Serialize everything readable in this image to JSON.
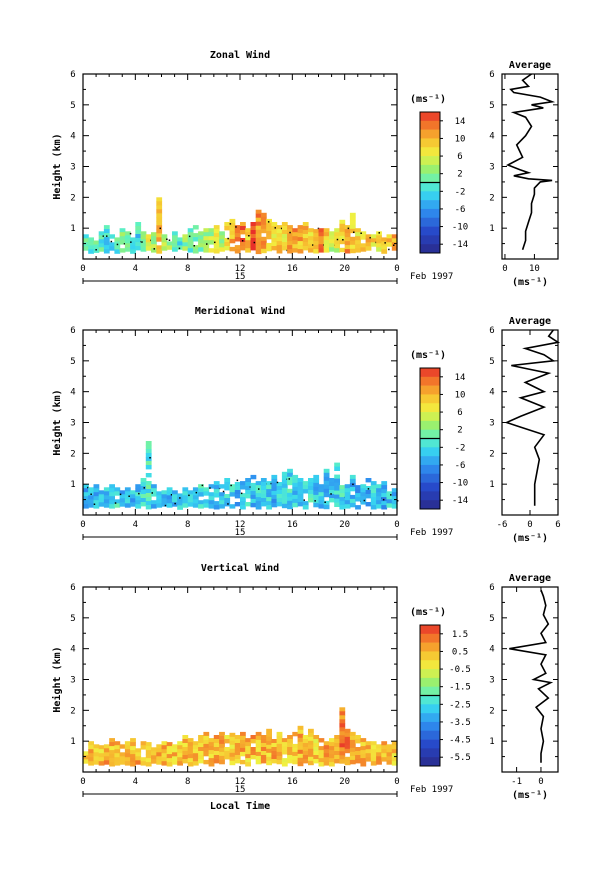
{
  "chart_data": [
    {
      "id": "zonal",
      "type": "heatmap",
      "title": "Zonal Wind",
      "xlabel": "",
      "ylabel": "Height (km)",
      "xlim": [
        0,
        24
      ],
      "ylim": [
        0,
        6
      ],
      "xticks": [
        "0",
        "4",
        "8",
        "12",
        "16",
        "20",
        "0"
      ],
      "yticks": [
        "1",
        "2",
        "3",
        "4",
        "5",
        "6"
      ],
      "day_label": "15",
      "date_label": "Feb 1997",
      "unit_label": "(ms⁻¹)",
      "colorbar": {
        "min": -16,
        "max": 16,
        "ticks": [
          "14",
          "10",
          "6",
          "2",
          "-2",
          "-6",
          "-10",
          "-14"
        ]
      },
      "top_height_km": [
        0.8,
        0.7,
        0.6,
        0.9,
        1.1,
        0.8,
        0.7,
        1.0,
        0.9,
        0.7,
        1.2,
        0.9,
        0.8,
        1.0,
        2.0,
        0.8,
        0.7,
        0.9,
        0.7,
        0.8,
        1.0,
        1.1,
        0.9,
        1.0,
        1.0,
        1.1,
        0.9,
        1.2,
        1.3,
        1.1,
        1.2,
        1.0,
        1.2,
        1.6,
        1.5,
        1.3,
        1.2,
        1.1,
        1.2,
        1.1,
        1.0,
        1.1,
        1.2,
        1.0,
        1.1,
        1.0,
        1.0,
        0.9,
        1.0,
        1.4,
        1.1,
        1.5,
        1.0,
        0.9,
        0.8,
        0.8,
        0.9,
        0.7,
        0.8,
        0.8
      ],
      "mean_value": [
        -1,
        -1,
        0,
        -1,
        -2,
        -1,
        0,
        1,
        0,
        -1,
        -2,
        2,
        6,
        4,
        10,
        3,
        2,
        0,
        -1,
        2,
        0,
        1,
        2,
        3,
        4,
        5,
        4,
        8,
        10,
        12,
        13,
        9,
        14,
        12,
        11,
        10,
        8,
        9,
        7,
        12,
        11,
        10,
        9,
        8,
        10,
        12,
        8,
        4,
        6,
        8,
        11,
        9,
        8,
        9,
        10,
        8,
        7,
        8,
        9,
        10
      ],
      "average_profile": {
        "title": "Average",
        "xlabel": "(ms⁻¹)",
        "xlim": [
          -1,
          18
        ],
        "xticks": [
          "0",
          "10"
        ],
        "height_km": [
          0.3,
          0.6,
          0.9,
          1.2,
          1.5,
          1.8,
          2.1,
          2.3,
          2.5,
          2.55,
          2.6,
          2.7,
          2.8,
          2.9,
          3.05,
          3.3,
          3.7,
          3.8,
          4.0,
          4.3,
          4.6,
          4.75,
          4.9,
          5.0,
          5.1,
          5.25,
          5.4,
          5.5,
          5.6,
          5.8,
          6.0
        ],
        "wind": [
          6,
          7,
          7,
          8,
          9,
          9,
          10,
          10,
          12,
          16,
          8,
          3,
          8,
          5,
          1,
          6,
          4,
          5,
          7,
          9,
          7,
          3,
          13,
          9,
          16,
          12,
          3,
          2,
          8,
          6,
          9
        ]
      }
    },
    {
      "id": "meridional",
      "type": "heatmap",
      "title": "Meridional Wind",
      "xlabel": "",
      "ylabel": "Height (km)",
      "xlim": [
        0,
        24
      ],
      "ylim": [
        0,
        6
      ],
      "xticks": [
        "0",
        "4",
        "8",
        "12",
        "16",
        "20",
        "0"
      ],
      "yticks": [
        "1",
        "2",
        "3",
        "4",
        "5",
        "6"
      ],
      "day_label": "15",
      "date_label": "Feb 1997",
      "unit_label": "(ms⁻¹)",
      "colorbar": {
        "min": -16,
        "max": 16,
        "ticks": [
          "14",
          "10",
          "6",
          "2",
          "-2",
          "-6",
          "-10",
          "-14"
        ]
      },
      "top_height_km": [
        1.0,
        0.9,
        1.0,
        0.8,
        0.9,
        1.0,
        0.9,
        0.8,
        0.9,
        0.8,
        1.0,
        1.2,
        2.4,
        1.0,
        0.9,
        0.8,
        0.9,
        0.8,
        0.7,
        0.9,
        0.8,
        0.9,
        1.0,
        0.9,
        1.0,
        1.1,
        1.0,
        1.2,
        1.0,
        1.2,
        1.1,
        1.2,
        1.3,
        1.1,
        1.2,
        1.1,
        1.3,
        1.2,
        1.4,
        1.5,
        1.3,
        1.2,
        1.1,
        1.2,
        1.3,
        1.0,
        1.5,
        1.2,
        1.7,
        1.1,
        1.0,
        1.3,
        1.1,
        1.0,
        1.2,
        1.1,
        1.0,
        1.1,
        0.9,
        1.0
      ],
      "mean_value": [
        -4,
        -3,
        -4,
        -5,
        -3,
        -4,
        -2,
        -4,
        -3,
        -4,
        -3,
        -2,
        -1,
        -3,
        -4,
        -3,
        -5,
        -3,
        -4,
        -3,
        -4,
        -3,
        -2,
        -3,
        -4,
        -3,
        -4,
        -3,
        -2,
        -4,
        -3,
        -3,
        -4,
        -3,
        -2,
        -3,
        -4,
        -3,
        -3,
        -2,
        -3,
        -4,
        -3,
        -2,
        -4,
        -3,
        -4,
        -3,
        -3,
        -2,
        -4,
        -4,
        -5,
        -3,
        -4,
        -3,
        -4,
        -5,
        -3,
        -4
      ],
      "average_profile": {
        "title": "Average",
        "xlabel": "(ms⁻¹)",
        "xlim": [
          -6,
          6
        ],
        "xticks": [
          "-6",
          "0",
          "6"
        ],
        "height_km": [
          0.3,
          0.6,
          1.0,
          1.4,
          1.8,
          2.2,
          2.6,
          2.9,
          3.0,
          3.2,
          3.5,
          3.8,
          4.0,
          4.3,
          4.6,
          4.85,
          5.0,
          5.2,
          5.4,
          5.6,
          5.8,
          6.0
        ],
        "wind": [
          1,
          1,
          1,
          1.5,
          2,
          1,
          3,
          -3,
          -5,
          -2,
          3,
          -2,
          3,
          -1,
          4,
          -4,
          5,
          3,
          -1,
          6,
          4,
          5
        ]
      }
    },
    {
      "id": "vertical",
      "type": "heatmap",
      "title": "Vertical Wind",
      "xlabel": "Local Time",
      "ylabel": "Height (km)",
      "xlim": [
        0,
        24
      ],
      "ylim": [
        0,
        6
      ],
      "xticks": [
        "0",
        "4",
        "8",
        "12",
        "16",
        "20",
        "0"
      ],
      "yticks": [
        "1",
        "2",
        "3",
        "4",
        "5",
        "6"
      ],
      "day_label": "15",
      "date_label": "Feb 1997",
      "unit_label": "(ms⁻¹)",
      "colorbar": {
        "min": -6,
        "max": 2,
        "ticks": [
          "1.5",
          "0.5",
          "-0.5",
          "-1.5",
          "-2.5",
          "-3.5",
          "-4.5",
          "-5.5"
        ]
      },
      "top_height_km": [
        0.8,
        1.0,
        0.9,
        1.0,
        0.9,
        1.1,
        1.0,
        0.9,
        1.0,
        1.1,
        0.9,
        1.0,
        1.1,
        0.8,
        0.9,
        1.0,
        1.1,
        0.9,
        1.0,
        1.2,
        1.1,
        1.0,
        1.2,
        1.3,
        1.1,
        1.2,
        1.3,
        1.2,
        1.4,
        1.2,
        1.3,
        1.1,
        1.2,
        1.3,
        1.2,
        1.4,
        1.2,
        1.3,
        1.1,
        1.2,
        1.3,
        1.5,
        1.2,
        1.4,
        1.2,
        1.1,
        1.0,
        1.1,
        1.2,
        2.1,
        1.4,
        1.3,
        1.2,
        1.1,
        1.0,
        1.0,
        0.9,
        1.0,
        0.9,
        1.0
      ],
      "mean_value": [
        0.3,
        0.4,
        0.2,
        0.3,
        0.5,
        0.4,
        0.3,
        0.2,
        0.4,
        0.3,
        0.5,
        0.2,
        0.3,
        0.4,
        0.6,
        0.3,
        0.4,
        0.2,
        0.3,
        0.4,
        0.3,
        0.5,
        0.2,
        0.4,
        0.3,
        0.6,
        0.4,
        0.2,
        0.3,
        0.5,
        0.4,
        0.3,
        0.6,
        0.2,
        0.4,
        0.3,
        0.5,
        0.4,
        0.2,
        0.3,
        0.4,
        0.5,
        0.3,
        0.4,
        0.2,
        0.3,
        0.6,
        0.4,
        0.8,
        1.2,
        0.9,
        0.4,
        0.3,
        0.4,
        0.2,
        0.3,
        0.5,
        0.4,
        0.3,
        0.2
      ],
      "average_profile": {
        "title": "Average",
        "xlabel": "(ms⁻¹)",
        "xlim": [
          -1.6,
          0.7
        ],
        "xticks": [
          "-1",
          "0"
        ],
        "height_km": [
          0.3,
          0.6,
          1.0,
          1.4,
          1.8,
          2.1,
          2.4,
          2.7,
          2.9,
          3.0,
          3.2,
          3.5,
          3.8,
          4.0,
          4.2,
          4.5,
          4.8,
          5.1,
          5.4,
          5.7,
          5.9
        ],
        "wind": [
          0,
          0,
          0.1,
          0,
          0.1,
          -0.2,
          0.3,
          -0.1,
          0.4,
          -0.3,
          0.2,
          0,
          0.2,
          -1.3,
          0.2,
          0,
          0.3,
          0.1,
          0.2,
          0.1,
          0
        ]
      }
    }
  ]
}
